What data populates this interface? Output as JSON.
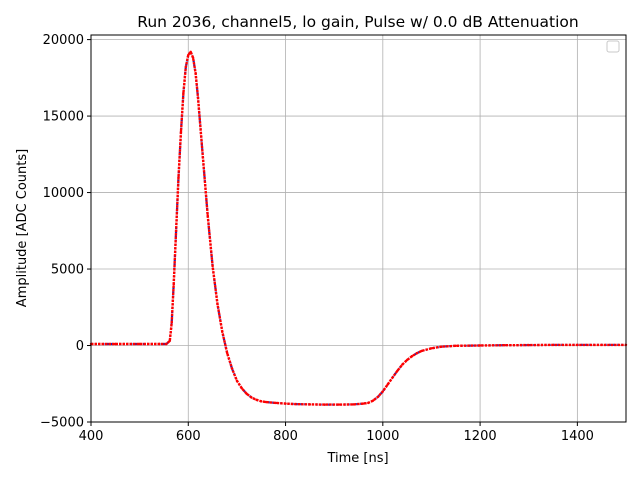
{
  "chart_data": {
    "type": "scatter",
    "title": "Run 2036, channel5, lo gain, Pulse w/ 0.0 dB Attenuation",
    "xlabel": "Time [ns]",
    "ylabel": "Amplitude [ADC Counts]",
    "xlim": [
      400,
      1500
    ],
    "ylim": [
      -5000,
      20300
    ],
    "xticks": [
      400,
      600,
      800,
      1000,
      1200,
      1400
    ],
    "yticks": [
      -5000,
      0,
      5000,
      10000,
      15000,
      20000
    ],
    "grid": true,
    "legend": {
      "placement": "top-right",
      "entries": []
    },
    "colors": {
      "series": "#ff0000",
      "overlap": "#1f1fb4",
      "grid": "#b0b0b0"
    },
    "series": [
      {
        "x": [
          400,
          450,
          500,
          540,
          555,
          562,
          566,
          570,
          575,
          580,
          585,
          590,
          595,
          600,
          605,
          610,
          615,
          620,
          630,
          640,
          650,
          660,
          670,
          680,
          690,
          700,
          710,
          720,
          730,
          740,
          750,
          760,
          780,
          800,
          820,
          850,
          880,
          910,
          940,
          960,
          970,
          980,
          990,
          1000,
          1010,
          1020,
          1030,
          1040,
          1050,
          1060,
          1070,
          1080,
          1100,
          1120,
          1150,
          1200,
          1250,
          1300,
          1350,
          1400,
          1450,
          1500
        ],
        "y": [
          100,
          100,
          100,
          100,
          100,
          300,
          1500,
          4000,
          7500,
          11000,
          14000,
          16500,
          18200,
          19000,
          19200,
          18800,
          17800,
          16200,
          12300,
          8500,
          5200,
          2700,
          900,
          -500,
          -1500,
          -2300,
          -2800,
          -3150,
          -3400,
          -3550,
          -3650,
          -3700,
          -3750,
          -3800,
          -3830,
          -3850,
          -3860,
          -3860,
          -3850,
          -3800,
          -3750,
          -3600,
          -3350,
          -3000,
          -2550,
          -2100,
          -1650,
          -1250,
          -950,
          -700,
          -500,
          -350,
          -180,
          -80,
          -20,
          0,
          20,
          30,
          40,
          40,
          40,
          40
        ]
      }
    ]
  }
}
